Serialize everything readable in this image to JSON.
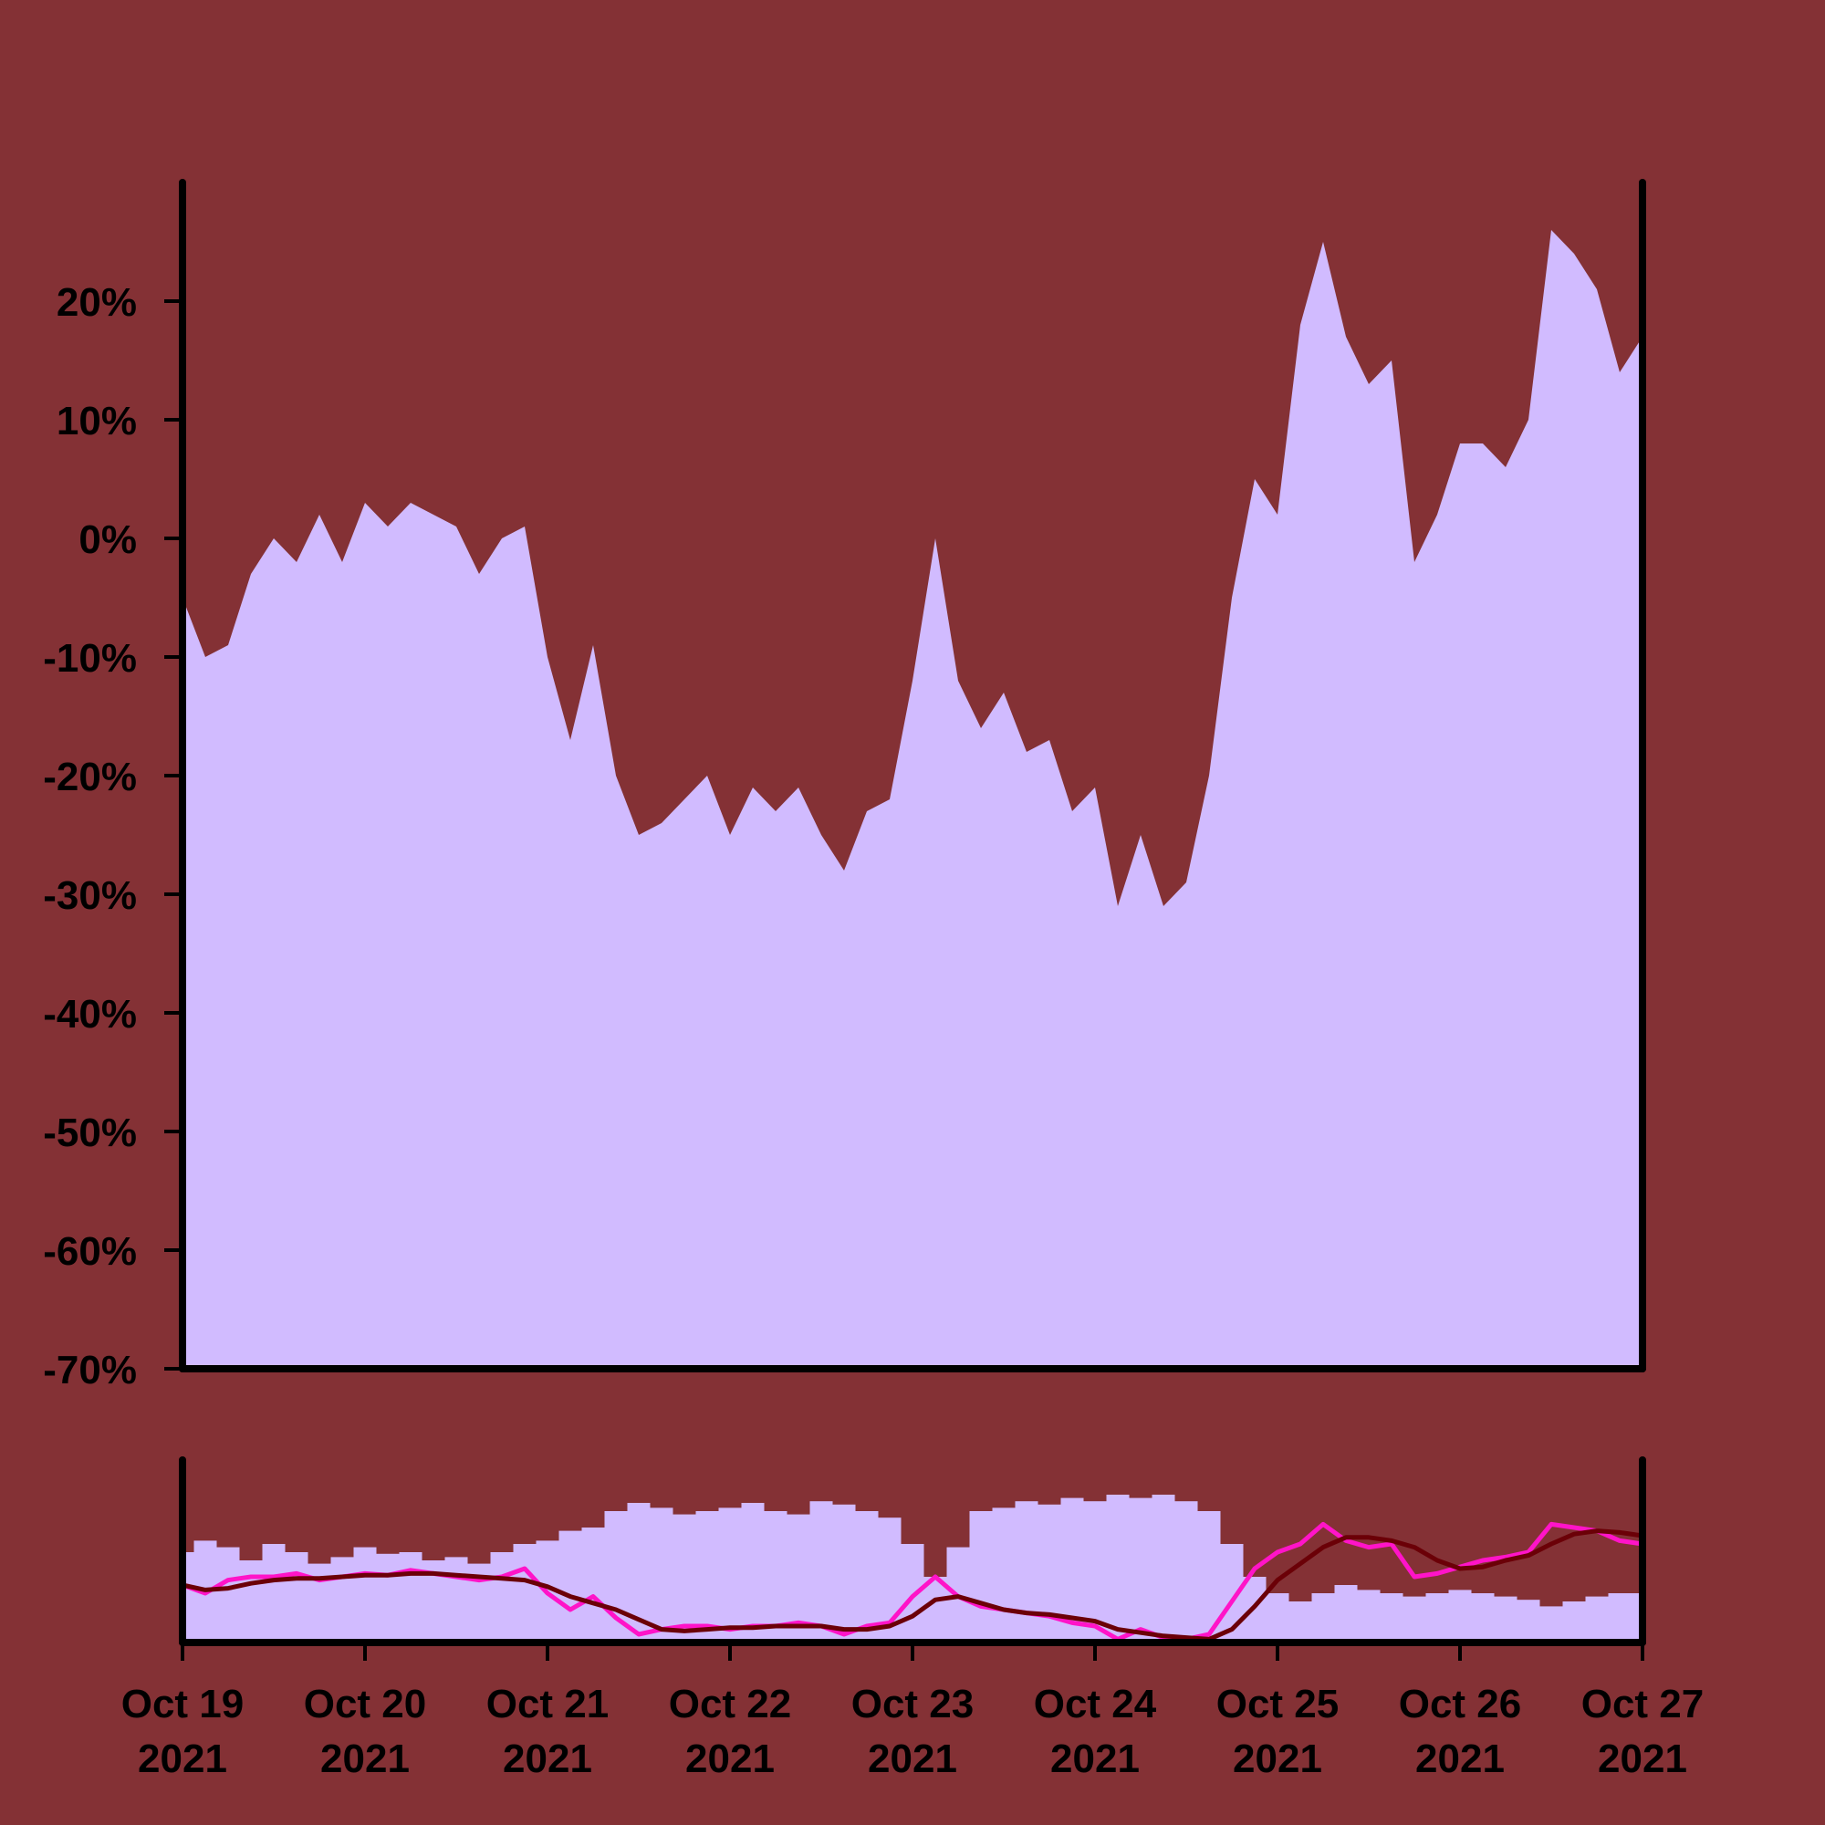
{
  "colors": {
    "background": "#843135",
    "area_fill": "#d1bbff",
    "axis": "#000000",
    "ma_fast": "#ff14c8",
    "ma_slow": "#6b0007"
  },
  "chart_data": [
    {
      "type": "area",
      "title": "",
      "xlabel": "",
      "ylabel": "",
      "x_range": [
        "2021-10-19",
        "2021-10-27"
      ],
      "ylim": [
        -70,
        30
      ],
      "y_ticks": [
        20,
        10,
        0,
        -10,
        -20,
        -30,
        -40,
        -50,
        -60,
        -70
      ],
      "y_tick_labels": [
        "20%",
        "10%",
        "0%",
        "-10%",
        "-20%",
        "-30%",
        "-40%",
        "-50%",
        "-60%",
        "-70%"
      ],
      "grid": false,
      "series": [
        {
          "x": [
            "2021-10-19 00:00",
            "2021-10-19 03:00",
            "2021-10-19 06:00",
            "2021-10-19 09:00",
            "2021-10-19 12:00",
            "2021-10-19 15:00",
            "2021-10-19 18:00",
            "2021-10-19 21:00",
            "2021-10-20 00:00",
            "2021-10-20 03:00",
            "2021-10-20 06:00",
            "2021-10-20 09:00",
            "2021-10-20 12:00",
            "2021-10-20 15:00",
            "2021-10-20 18:00",
            "2021-10-20 21:00",
            "2021-10-21 00:00",
            "2021-10-21 03:00",
            "2021-10-21 06:00",
            "2021-10-21 09:00",
            "2021-10-21 12:00",
            "2021-10-21 15:00",
            "2021-10-21 18:00",
            "2021-10-21 21:00",
            "2021-10-22 00:00",
            "2021-10-22 03:00",
            "2021-10-22 06:00",
            "2021-10-22 09:00",
            "2021-10-22 12:00",
            "2021-10-22 15:00",
            "2021-10-22 18:00",
            "2021-10-22 21:00",
            "2021-10-23 00:00",
            "2021-10-23 03:00",
            "2021-10-23 06:00",
            "2021-10-23 09:00",
            "2021-10-23 12:00",
            "2021-10-23 15:00",
            "2021-10-23 18:00",
            "2021-10-23 21:00",
            "2021-10-24 00:00",
            "2021-10-24 03:00",
            "2021-10-24 06:00",
            "2021-10-24 09:00",
            "2021-10-24 12:00",
            "2021-10-24 15:00",
            "2021-10-24 18:00",
            "2021-10-24 21:00",
            "2021-10-25 00:00",
            "2021-10-25 03:00",
            "2021-10-25 06:00",
            "2021-10-25 09:00",
            "2021-10-25 12:00",
            "2021-10-25 15:00",
            "2021-10-25 18:00",
            "2021-10-25 21:00",
            "2021-10-26 00:00",
            "2021-10-26 03:00",
            "2021-10-26 06:00",
            "2021-10-26 09:00",
            "2021-10-26 12:00",
            "2021-10-26 15:00",
            "2021-10-26 18:00",
            "2021-10-26 21:00",
            "2021-10-27 00:00"
          ],
          "y": [
            -5,
            -10,
            -9,
            -3,
            0,
            -2,
            2,
            -2,
            3,
            1,
            3,
            2,
            1,
            -3,
            0,
            1,
            -10,
            -17,
            -9,
            -20,
            -25,
            -24,
            -22,
            -20,
            -25,
            -21,
            -23,
            -21,
            -25,
            -28,
            -23,
            -22,
            -12,
            0,
            -12,
            -16,
            -13,
            -18,
            -17,
            -23,
            -21,
            -31,
            -25,
            -31,
            -29,
            -20,
            -5,
            5,
            2,
            18,
            25,
            17,
            13,
            15,
            -2,
            2,
            8,
            8,
            6,
            10,
            26,
            24,
            21,
            14,
            17
          ]
        }
      ]
    },
    {
      "type": "bar",
      "title": "",
      "xlabel": "",
      "ylabel": "",
      "x_range": [
        "2021-10-19",
        "2021-10-27"
      ],
      "x_tick_labels": [
        {
          "day": "Oct 19",
          "year": "2021"
        },
        {
          "day": "Oct 20",
          "year": "2021"
        },
        {
          "day": "Oct 21",
          "year": "2021"
        },
        {
          "day": "Oct 22",
          "year": "2021"
        },
        {
          "day": "Oct 23",
          "year": "2021"
        },
        {
          "day": "Oct 24",
          "year": "2021"
        },
        {
          "day": "Oct 25",
          "year": "2021"
        },
        {
          "day": "Oct 26",
          "year": "2021"
        },
        {
          "day": "Oct 27",
          "year": "2021"
        }
      ],
      "note_levels": "relative levels 0-1",
      "series": [
        {
          "kind": "bars",
          "values": [
            0.55,
            0.62,
            0.58,
            0.5,
            0.6,
            0.55,
            0.48,
            0.52,
            0.58,
            0.54,
            0.55,
            0.5,
            0.52,
            0.48,
            0.55,
            0.6,
            0.62,
            0.68,
            0.7,
            0.8,
            0.85,
            0.82,
            0.78,
            0.8,
            0.82,
            0.85,
            0.8,
            0.78,
            0.86,
            0.84,
            0.8,
            0.76,
            0.6,
            0.4,
            0.58,
            0.8,
            0.82,
            0.86,
            0.84,
            0.88,
            0.86,
            0.9,
            0.88,
            0.9,
            0.86,
            0.8,
            0.6,
            0.4,
            0.3,
            0.25,
            0.3,
            0.35,
            0.32,
            0.3,
            0.28,
            0.3,
            0.32,
            0.3,
            0.28,
            0.26,
            0.22,
            0.25,
            0.28,
            0.3,
            0.3
          ]
        },
        {
          "kind": "line",
          "values": [
            0.35,
            0.3,
            0.38,
            0.4,
            0.4,
            0.42,
            0.38,
            0.4,
            0.42,
            0.41,
            0.44,
            0.42,
            0.4,
            0.38,
            0.4,
            0.45,
            0.3,
            0.2,
            0.28,
            0.15,
            0.05,
            0.08,
            0.1,
            0.1,
            0.08,
            0.1,
            0.1,
            0.12,
            0.1,
            0.05,
            0.1,
            0.12,
            0.28,
            0.4,
            0.28,
            0.22,
            0.2,
            0.18,
            0.16,
            0.12,
            0.1,
            0.02,
            0.08,
            0.03,
            0.02,
            0.05,
            0.25,
            0.45,
            0.55,
            0.6,
            0.72,
            0.62,
            0.58,
            0.6,
            0.4,
            0.42,
            0.46,
            0.5,
            0.52,
            0.55,
            0.72,
            0.7,
            0.68,
            0.62,
            0.6
          ]
        },
        {
          "kind": "line",
          "values": [
            0.35,
            0.32,
            0.33,
            0.36,
            0.38,
            0.39,
            0.39,
            0.4,
            0.41,
            0.41,
            0.42,
            0.42,
            0.41,
            0.4,
            0.39,
            0.38,
            0.34,
            0.28,
            0.24,
            0.2,
            0.14,
            0.08,
            0.07,
            0.08,
            0.09,
            0.09,
            0.1,
            0.1,
            0.1,
            0.08,
            0.08,
            0.1,
            0.16,
            0.26,
            0.28,
            0.24,
            0.2,
            0.18,
            0.17,
            0.15,
            0.13,
            0.08,
            0.06,
            0.04,
            0.03,
            0.02,
            0.08,
            0.22,
            0.38,
            0.48,
            0.58,
            0.64,
            0.64,
            0.62,
            0.58,
            0.5,
            0.45,
            0.46,
            0.5,
            0.53,
            0.6,
            0.66,
            0.68,
            0.67,
            0.65
          ]
        }
      ]
    }
  ]
}
